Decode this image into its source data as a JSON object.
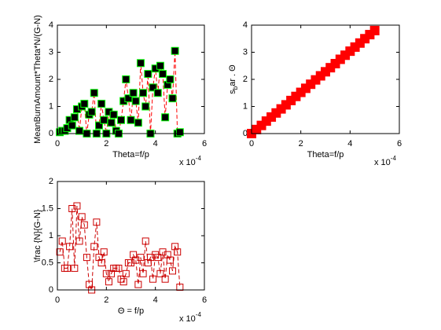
{
  "chart_data": [
    {
      "type": "scatter",
      "xlabel": "Theta=f/p",
      "ylabel": "MeanBurnAmount*Theta*N/(G-N)",
      "x_scale_base": "x 10",
      "x_scale_exp": "-4",
      "xlim": [
        0,
        6
      ],
      "ylim": [
        0,
        4
      ],
      "xticks": [
        0,
        2,
        4,
        6
      ],
      "yticks": [
        0,
        1,
        2,
        3,
        4
      ],
      "line_color": "#ff0000",
      "line_style": "dashed",
      "marker_fill": "#000000",
      "marker_edge": "#00ff00",
      "marker_size": 9,
      "series": [
        {
          "x": [
            0.1,
            0.2,
            0.3,
            0.4,
            0.5,
            0.6,
            0.7,
            0.8,
            0.9,
            1.0,
            1.1,
            1.2,
            1.3,
            1.4,
            1.5,
            1.6,
            1.7,
            1.8,
            1.9,
            2.0,
            2.1,
            2.2,
            2.3,
            2.4,
            2.5,
            2.6,
            2.7,
            2.8,
            2.9,
            3.0,
            3.1,
            3.2,
            3.3,
            3.4,
            3.5,
            3.6,
            3.7,
            3.8,
            3.9,
            4.0,
            4.1,
            4.2,
            4.3,
            4.4,
            4.5,
            4.6,
            4.7,
            4.8,
            4.9,
            5.0
          ],
          "values": [
            0.05,
            0.1,
            0.1,
            0.2,
            0.5,
            0.3,
            0.6,
            0.9,
            0.1,
            1.0,
            1.1,
            0,
            0.7,
            0.8,
            1.5,
            0,
            0.3,
            1.1,
            0.5,
            0,
            0.8,
            0.4,
            0.7,
            0.1,
            0,
            0.5,
            1.2,
            2.0,
            1.3,
            0.5,
            1.5,
            1.2,
            0.4,
            2.6,
            1.5,
            1.0,
            2.2,
            0,
            1.7,
            2.4,
            1.5,
            2.5,
            2.2,
            0.6,
            1.8,
            2.0,
            1.3,
            3.05,
            0,
            0.05
          ]
        }
      ]
    },
    {
      "type": "scatter",
      "xlabel": "Theta=f/p",
      "ylabel_base": "s",
      "ylabel_sub": "b",
      "ylabel_rest": "ar . Θ",
      "x_scale_base": "x 10",
      "x_scale_exp": "-4",
      "xlim": [
        0,
        6
      ],
      "ylim": [
        0,
        4
      ],
      "xticks": [
        0,
        2,
        4,
        6
      ],
      "yticks": [
        0,
        1,
        2,
        3,
        4
      ],
      "line_color": "#ff0000",
      "line_style": "none",
      "marker_fill": "#ff0000",
      "marker_edge": "#ff0000",
      "marker_size": 11,
      "series": [
        {
          "x": [
            0,
            0.2,
            0.4,
            0.6,
            0.8,
            1.0,
            1.2,
            1.4,
            1.6,
            1.8,
            2.0,
            2.2,
            2.4,
            2.6,
            2.8,
            3.0,
            3.2,
            3.4,
            3.6,
            3.8,
            4.0,
            4.2,
            4.4,
            4.6,
            4.8,
            5.0
          ],
          "values": [
            0,
            0.15,
            0.3,
            0.46,
            0.61,
            0.76,
            0.91,
            1.06,
            1.22,
            1.37,
            1.52,
            1.67,
            1.82,
            1.98,
            2.13,
            2.28,
            2.43,
            2.58,
            2.74,
            2.89,
            3.04,
            3.19,
            3.34,
            3.5,
            3.65,
            3.8
          ]
        }
      ]
    },
    {
      "type": "scatter",
      "xlabel": "Θ = f/p",
      "ylabel": "\\frac {N}{G-N}",
      "x_scale_base": "x 10",
      "x_scale_exp": "-4",
      "xlim": [
        0,
        6
      ],
      "ylim": [
        0,
        2
      ],
      "xticks": [
        0,
        2,
        4,
        6
      ],
      "yticks": [
        0,
        0.5,
        1,
        1.5,
        2
      ],
      "line_color": "#cc0000",
      "line_style": "dashed",
      "marker_fill": "none",
      "marker_edge": "#cc0000",
      "marker_size": 8,
      "series": [
        {
          "x": [
            0.1,
            0.2,
            0.3,
            0.4,
            0.5,
            0.6,
            0.7,
            0.8,
            0.9,
            1.0,
            1.1,
            1.2,
            1.3,
            1.4,
            1.5,
            1.6,
            1.7,
            1.8,
            1.9,
            2.0,
            2.1,
            2.2,
            2.3,
            2.4,
            2.5,
            2.6,
            2.7,
            2.8,
            2.9,
            3.0,
            3.1,
            3.2,
            3.3,
            3.4,
            3.5,
            3.6,
            3.7,
            3.8,
            3.9,
            4.0,
            4.1,
            4.2,
            4.3,
            4.4,
            4.5,
            4.6,
            4.7,
            4.8,
            4.9,
            5.0
          ],
          "values": [
            0.7,
            0.9,
            0.4,
            0.4,
            0.8,
            1.5,
            0.4,
            1.55,
            0.9,
            1.35,
            1.2,
            0.6,
            0.1,
            0,
            0.8,
            1.25,
            0.6,
            0.5,
            0.7,
            0.3,
            0.15,
            0.3,
            0.4,
            0.4,
            0.4,
            0.2,
            0.15,
            0.3,
            0.5,
            0.5,
            0.65,
            0.55,
            0.1,
            0.6,
            0.3,
            0.9,
            0.5,
            0.6,
            0.2,
            0.65,
            0.6,
            0.3,
            0.7,
            0.2,
            0.65,
            0.55,
            0.35,
            0.8,
            0.7,
            0.05
          ]
        }
      ]
    }
  ]
}
